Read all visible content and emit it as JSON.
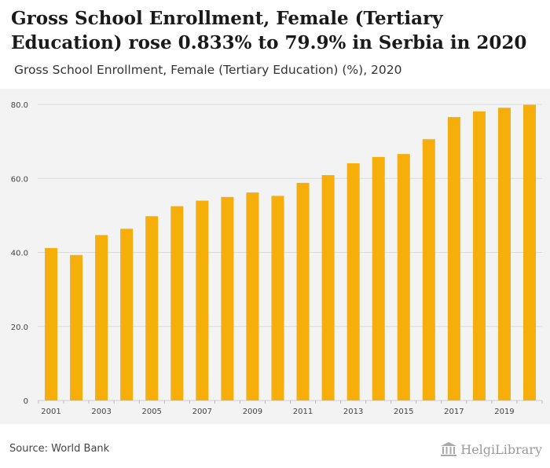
{
  "header": {
    "title": "Gross School Enrollment, Female (Tertiary Education) rose 0.833% to 79.9% in Serbia in 2020",
    "subtitle": "Gross School Enrollment, Female (Tertiary Education) (%), 2020"
  },
  "footer": {
    "source": "Source: World Bank",
    "brand": "HelgiLibrary"
  },
  "colors": {
    "bar": "#F5AE0A",
    "grid": "#dcdcdc",
    "plot_bg": "#f3f3f3",
    "tick_text": "#444444"
  },
  "chart_data": {
    "type": "bar",
    "title": "Gross School Enrollment, Female (Tertiary Education) (%), 2020",
    "xlabel": "",
    "ylabel": "",
    "categories": [
      "2001",
      "2002",
      "2003",
      "2004",
      "2005",
      "2006",
      "2007",
      "2008",
      "2009",
      "2010",
      "2011",
      "2012",
      "2013",
      "2014",
      "2015",
      "2016",
      "2017",
      "2018",
      "2019",
      "2020"
    ],
    "x_tick_labels": [
      "2001",
      "2003",
      "2005",
      "2007",
      "2009",
      "2011",
      "2013",
      "2015",
      "2017",
      "2019"
    ],
    "values": [
      41.2,
      39.3,
      44.7,
      46.4,
      49.8,
      52.5,
      54.0,
      55.0,
      56.2,
      55.3,
      58.8,
      60.9,
      64.1,
      65.8,
      66.6,
      70.6,
      76.6,
      78.1,
      79.1,
      79.9
    ],
    "ylim": [
      0,
      80
    ],
    "y_ticks": [
      {
        "value": 0,
        "label": "0"
      },
      {
        "value": 20,
        "label": "20.0"
      },
      {
        "value": 40,
        "label": "40.0"
      },
      {
        "value": 60,
        "label": "60.0"
      },
      {
        "value": 80,
        "label": "80.0"
      }
    ],
    "grid": true,
    "legend": "none"
  }
}
